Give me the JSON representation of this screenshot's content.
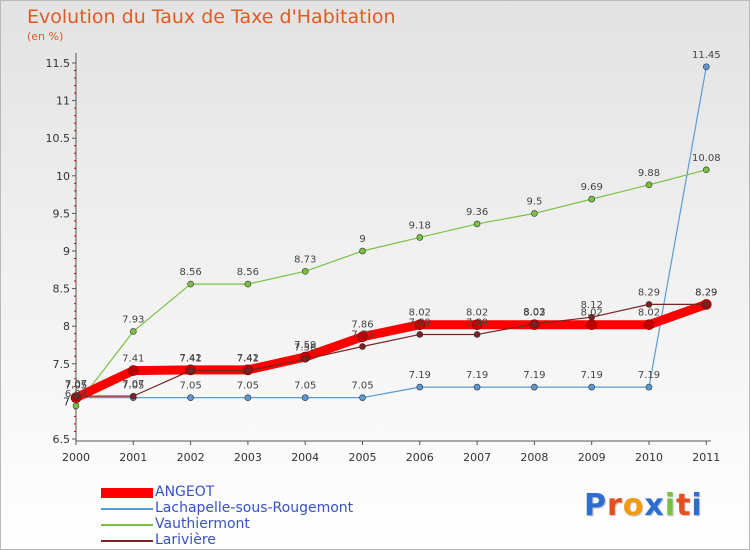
{
  "chart_data": {
    "type": "line",
    "title": "Evolution du Taux de Taxe d'Habitation",
    "unit_label": "(en %)",
    "x": [
      "2000",
      "2001",
      "2002",
      "2003",
      "2004",
      "2005",
      "2006",
      "2007",
      "2008",
      "2009",
      "2010",
      "2011"
    ],
    "y_ticks": [
      "6.5",
      "7",
      "7.5",
      "8",
      "8.5",
      "9",
      "9.5",
      "10",
      "10.5",
      "11",
      "11.5"
    ],
    "ylim": [
      6.5,
      11.5
    ],
    "legend_position": "bottom-left",
    "series": [
      {
        "name": "ANGEOT",
        "color": "#ff0000",
        "values": [
          7.05,
          7.41,
          7.42,
          7.42,
          7.59,
          7.86,
          8.02,
          8.02,
          8.02,
          8.02,
          8.02,
          8.29
        ],
        "labels": [
          "7.05",
          "7.41",
          "7.42",
          "7.42",
          "7.59",
          "7.86",
          "8.02",
          "8.02",
          "8.02",
          "8.02",
          "8.02",
          "8.29"
        ]
      },
      {
        "name": "Lachapelle-sous-Rougemont",
        "color": "#5b9bd5",
        "values": [
          7.05,
          7.05,
          7.05,
          7.05,
          7.05,
          7.05,
          7.19,
          7.19,
          7.19,
          7.19,
          7.19,
          11.45
        ],
        "labels": [
          "7.05",
          "7.05",
          "7.05",
          "7.05",
          "7.05",
          "7.05",
          "7.19",
          "7.19",
          "7.19",
          "7.19",
          "7.19",
          "11.45"
        ]
      },
      {
        "name": "Vauthiermont",
        "color": "#7ac143",
        "values": [
          6.94,
          7.93,
          8.56,
          8.56,
          8.73,
          9.0,
          9.18,
          9.36,
          9.5,
          9.69,
          9.88,
          10.08
        ],
        "labels": [
          "6.94",
          "7.93",
          "8.56",
          "8.56",
          "8.73",
          "9",
          "9.18",
          "9.36",
          "9.5",
          "9.69",
          "9.88",
          "10.08"
        ]
      },
      {
        "name": "Larivière",
        "color": "#7b2222",
        "values": [
          7.07,
          7.07,
          7.41,
          7.41,
          7.56,
          7.73,
          7.89,
          7.89,
          8.03,
          8.12,
          8.29,
          8.29
        ],
        "labels": [
          "7.07",
          "7.07",
          "7.41",
          "7.41",
          "7.56",
          "7.73",
          "7.89",
          "7.89",
          "8.03",
          "8.12",
          "8.29",
          "8.29"
        ]
      }
    ]
  },
  "legend": {
    "items": [
      {
        "label": "ANGEOT",
        "color": "#ff0000"
      },
      {
        "label": "Lachapelle-sous-Rougemont",
        "color": "#5b9bd5"
      },
      {
        "label": "Vauthiermont",
        "color": "#7ac143"
      },
      {
        "label": "Larivière",
        "color": "#7b2222"
      }
    ]
  },
  "logo": {
    "letters": [
      "P",
      "r",
      "o",
      "x",
      "i",
      "t",
      "i"
    ],
    "colors": [
      "#2d6fd1",
      "#e84d1c",
      "#f29b11",
      "#2d6fd1",
      "#7ac143",
      "#e84d1c",
      "#2d6fd1"
    ]
  }
}
